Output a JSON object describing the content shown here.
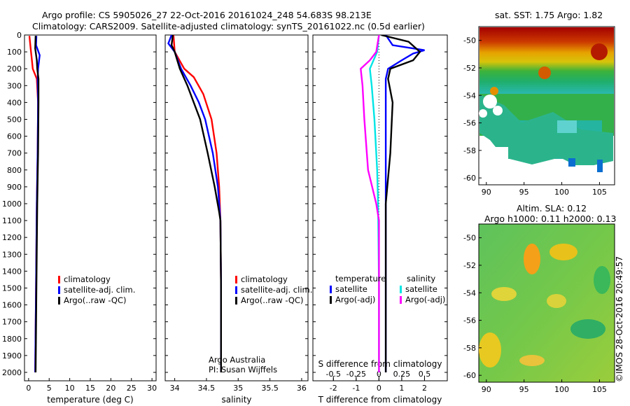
{
  "header": {
    "title_line1": "Argo profile: CS 5905026_27 22-Oct-2016 20161024_248 54.683S 98.213E",
    "title_line2": "Climatology: CARS2009. Satellite-adjusted climatology: synTS_20161022.nc (0.5d earlier)"
  },
  "maps": {
    "sst_title": "sat. SST: 1.75 Argo: 1.82",
    "sla_title_line1": "Altim. SLA: 0.12",
    "sla_title_line2": "Argo h1000: 0.11 h2000: 0.13",
    "lon_ticks": [
      90,
      95,
      100,
      105
    ],
    "lat_ticks": [
      -50,
      -52,
      -54,
      -56,
      -58,
      -60
    ]
  },
  "footer": {
    "credit_line1": "Argo Australia",
    "credit_line2": "PI: Susan Wijffels",
    "timestamp": "©IMOS 28-Oct-2016 20:49:57"
  },
  "colors": {
    "climatology": "#ff0000",
    "satellite": "#0000ff",
    "argo": "#000000",
    "sat_salinity": "#00e5e5",
    "argo_salinity": "#ff00ff"
  },
  "chart_data": [
    {
      "type": "line",
      "xlabel": "temperature (deg C)",
      "ylabel": "",
      "xlim": [
        -1,
        31
      ],
      "ylim": [
        2050,
        0
      ],
      "x_ticks": [
        0,
        5,
        10,
        15,
        20,
        25,
        30
      ],
      "y_ticks": [
        0,
        100,
        200,
        300,
        400,
        500,
        600,
        700,
        800,
        900,
        1000,
        1100,
        1200,
        1300,
        1400,
        1500,
        1600,
        1700,
        1800,
        1900,
        2000
      ],
      "legend": [
        "climatology",
        "satellite-adj. clim.",
        "Argo(..raw -QC)"
      ],
      "series": [
        {
          "name": "climatology",
          "color": "#ff0000",
          "depth": [
            5,
            80,
            150,
            200,
            260,
            400,
            700,
            1000,
            1500,
            2000
          ],
          "values": [
            0.2,
            0.5,
            0.8,
            1.0,
            2.0,
            2.3,
            2.2,
            2.0,
            1.8,
            1.6
          ]
        },
        {
          "name": "satellite-adj. clim.",
          "color": "#0000ff",
          "depth": [
            5,
            60,
            120,
            200,
            260,
            400,
            700,
            1000,
            1500,
            2000
          ],
          "values": [
            1.9,
            1.8,
            2.7,
            2.3,
            2.2,
            2.3,
            2.2,
            2.0,
            1.8,
            1.6
          ]
        },
        {
          "name": "Argo(..raw -QC)",
          "color": "#000000",
          "depth": [
            5,
            80,
            150,
            200,
            260,
            400,
            700,
            1000,
            1500,
            2000
          ],
          "values": [
            1.7,
            1.6,
            2.0,
            2.1,
            2.4,
            2.4,
            2.3,
            2.1,
            1.9,
            1.7
          ]
        }
      ]
    },
    {
      "type": "line",
      "xlabel": "salinity",
      "xlim": [
        33.85,
        36.1
      ],
      "ylim": [
        2050,
        0
      ],
      "x_ticks": [
        34,
        34.5,
        35,
        35.5,
        36
      ],
      "legend": [
        "climatology",
        "satellite-adj. clim.",
        "Argo(..raw -QC)"
      ],
      "series": [
        {
          "name": "climatology",
          "color": "#ff0000",
          "depth": [
            0,
            100,
            200,
            250,
            350,
            500,
            700,
            900,
            1100,
            1500,
            2000
          ],
          "values": [
            33.98,
            34.0,
            34.15,
            34.3,
            34.45,
            34.58,
            34.66,
            34.7,
            34.72,
            34.73,
            34.73
          ]
        },
        {
          "name": "satellite-adj. clim.",
          "color": "#0000ff",
          "depth": [
            0,
            50,
            100,
            200,
            300,
            400,
            500,
            700,
            900,
            1100,
            1500,
            2000
          ],
          "values": [
            33.95,
            33.9,
            34.0,
            34.1,
            34.25,
            34.38,
            34.48,
            34.6,
            34.68,
            34.72,
            34.73,
            34.73
          ]
        },
        {
          "name": "Argo(..raw -QC)",
          "color": "#000000",
          "depth": [
            0,
            60,
            100,
            200,
            300,
            400,
            500,
            700,
            900,
            1050,
            1100,
            1500,
            2000
          ],
          "values": [
            33.97,
            33.95,
            34.0,
            34.08,
            34.2,
            34.3,
            34.4,
            34.52,
            34.63,
            34.7,
            34.72,
            34.73,
            34.73
          ]
        }
      ],
      "credit": [
        "Argo Australia",
        "PI: Susan Wijffels"
      ]
    },
    {
      "type": "line",
      "xlabel": "T difference from climatology",
      "top_xlabel": "S difference from climatology",
      "xlim": [
        -2.9,
        3.0
      ],
      "top_xlim": [
        -0.725,
        0.75
      ],
      "ylim": [
        2050,
        0
      ],
      "x_ticks": [
        -2,
        -1,
        0,
        1,
        2
      ],
      "top_x_ticks": [
        -0.5,
        -0.25,
        0,
        0.25,
        0.5
      ],
      "legend_left_title": "temperature",
      "legend_right_title": "salinity",
      "legend": [
        "satellite",
        "Argo(-adj)",
        "satellite",
        "Argo(-adj)"
      ],
      "series": [
        {
          "name": "satellite",
          "color": "#0000ff",
          "axis": "T",
          "depth": [
            0,
            60,
            90,
            110,
            150,
            200,
            260,
            400,
            700,
            1000,
            1500,
            2000
          ],
          "values": [
            0.3,
            0.6,
            2.0,
            1.5,
            1.0,
            0.4,
            0.3,
            0.3,
            0.3,
            0.3,
            0.3,
            0.3
          ]
        },
        {
          "name": "Argo(-adj)",
          "color": "#000000",
          "axis": "T",
          "depth": [
            0,
            40,
            100,
            150,
            200,
            260,
            400,
            700,
            1000,
            1500,
            2000
          ],
          "values": [
            0.1,
            1.3,
            1.8,
            1.5,
            0.5,
            0.4,
            0.6,
            0.5,
            0.3,
            0.3,
            0.3
          ]
        },
        {
          "name": "satellite",
          "color": "#00e5e5",
          "axis": "S",
          "depth": [
            0,
            100,
            200,
            300,
            500,
            800,
            1000,
            1500,
            2000
          ],
          "values": [
            0.0,
            -0.02,
            -0.1,
            -0.08,
            -0.05,
            -0.02,
            -0.01,
            0.0,
            0.0
          ]
        },
        {
          "name": "Argo(-adj)",
          "color": "#ff00ff",
          "axis": "S",
          "depth": [
            0,
            100,
            150,
            200,
            300,
            500,
            800,
            1000,
            1100,
            1500,
            2000
          ],
          "values": [
            0.0,
            -0.03,
            -0.1,
            -0.2,
            -0.18,
            -0.16,
            -0.12,
            -0.03,
            0.0,
            0.0,
            0.0
          ]
        }
      ]
    }
  ]
}
